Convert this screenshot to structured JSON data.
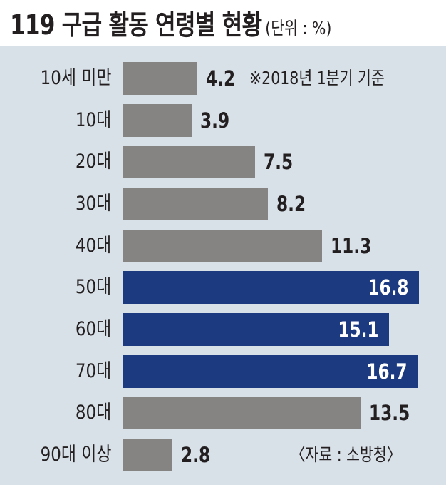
{
  "chart_data": {
    "type": "bar",
    "orientation": "horizontal",
    "title": "119 구급 활동 연령별 현황",
    "unit": "(단위 : %)",
    "categories": [
      "10세 미만",
      "10대",
      "20대",
      "30대",
      "40대",
      "50대",
      "60대",
      "70대",
      "80대",
      "90대 이상"
    ],
    "values": [
      4.2,
      3.9,
      7.5,
      8.2,
      11.3,
      16.8,
      15.1,
      16.7,
      13.5,
      2.8
    ],
    "value_labels": [
      "4.2",
      "3.9",
      "7.5",
      "8.2",
      "11.3",
      "16.8",
      "15.1",
      "16.7",
      "13.5",
      "2.8"
    ],
    "highlighted": [
      false,
      false,
      false,
      false,
      false,
      true,
      true,
      true,
      false,
      false
    ],
    "note": "※2018년 1분기 기준",
    "source": "〈자료 : 소방청〉",
    "xlim": [
      0,
      16.8
    ],
    "grid": false,
    "colors": {
      "default": "#858483",
      "highlight": "#1b3a80",
      "background": "#d8e0e8"
    }
  }
}
